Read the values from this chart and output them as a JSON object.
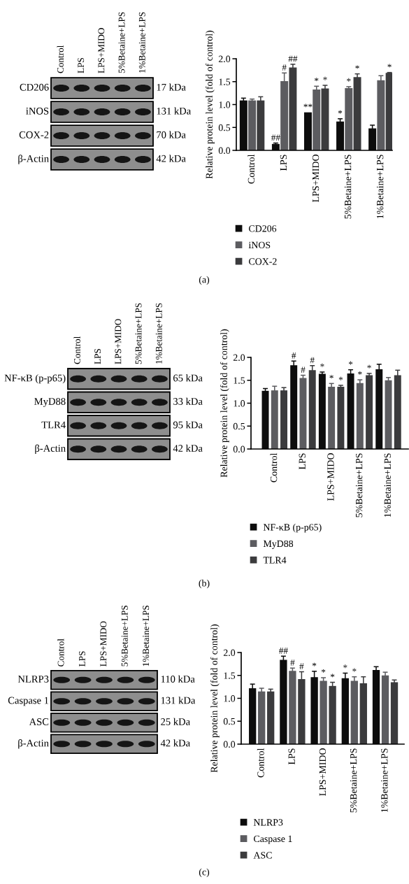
{
  "chart_data": [
    {
      "type": "other",
      "categories": [
        "Control",
        "LPS",
        "LPS+MIDO",
        "5%Betaine+LPS",
        "1%Betaine+LPS"
      ],
      "y_categories": [
        "CD206",
        "iNOS",
        "COX-2",
        "β-Actin"
      ],
      "y2_categories": [
        "17 kDa",
        "131 kDa",
        "70 kDa",
        "42 kDa"
      ],
      "annotations": [
        "(a)"
      ]
    },
    {
      "type": "bar",
      "ylabel": "Relative protein level (fold of control)",
      "categories": [
        "Control",
        "LPS",
        "LPS+MIDO",
        "5%Betaine+LPS",
        "1%Betaine+LPS"
      ],
      "series": [
        {
          "name": "CD206",
          "color": "#0d0d0d",
          "values": [
            1.09,
            0.14,
            0.83,
            0.63,
            0.48
          ],
          "errors": [
            0.05,
            0.02,
            null,
            0.06,
            0.07
          ],
          "value_labels": [
            null,
            "##",
            "**",
            "*",
            null
          ]
        },
        {
          "name": "iNOS",
          "color": "#5c5c60",
          "values": [
            1.09,
            1.51,
            1.33,
            1.36,
            1.53
          ],
          "errors": [
            0.03,
            0.18,
            0.07,
            0.03,
            0.1
          ],
          "value_labels": [
            null,
            "#",
            "*",
            "*",
            null
          ]
        },
        {
          "name": "COX-2",
          "color": "#3b3b3d",
          "values": [
            1.09,
            1.81,
            1.35,
            1.6,
            1.69
          ],
          "errors": [
            0.08,
            0.07,
            0.07,
            0.07,
            0.01
          ],
          "value_labels": [
            null,
            "##",
            "*",
            "*",
            "*"
          ]
        }
      ],
      "ylim": [
        0,
        2
      ],
      "yticks": [
        {
          "value": 0,
          "label": "0.0"
        },
        {
          "value": 0.5,
          "label": "0.5"
        },
        {
          "value": 1,
          "label": "1.0"
        },
        {
          "value": 1.5,
          "label": "1.5"
        },
        {
          "value": 2,
          "label": "2.0"
        }
      ],
      "legend": "bottom"
    },
    {
      "type": "other",
      "categories": [
        "Control",
        "LPS",
        "LPS+MIDO",
        "5%Betaine+LPS",
        "1%Betaine+LPS"
      ],
      "y_categories": [
        "NF-κB (p-p65)",
        "MyD88",
        "TLR4",
        "β-Actin"
      ],
      "y2_categories": [
        "65 kDa",
        "33 kDa",
        "95 kDa",
        "42 kDa"
      ],
      "annotations": [
        "(b)"
      ]
    },
    {
      "type": "bar",
      "ylabel": "Relative protein level (fold of control)",
      "categories": [
        "Control",
        "LPS",
        "LPS+MIDO",
        "5%Betaine+LPS",
        "1%Betaine+LPS"
      ],
      "series": [
        {
          "name": "NF-κB (p-p65)",
          "color": "#0d0d0d",
          "values": [
            1.27,
            1.83,
            1.64,
            1.65,
            1.74
          ],
          "errors": [
            0.05,
            0.09,
            0.04,
            0.08,
            0.11
          ],
          "value_labels": [
            null,
            "#",
            "*",
            "*",
            null
          ]
        },
        {
          "name": "MyD88",
          "color": "#5c5c60",
          "values": [
            1.28,
            1.55,
            1.36,
            1.44,
            1.5
          ],
          "errors": [
            0.09,
            0.06,
            0.07,
            0.07,
            0.06
          ],
          "value_labels": [
            null,
            "#",
            "*",
            "*",
            null
          ]
        },
        {
          "name": "TLR4",
          "color": "#3b3b3d",
          "values": [
            1.28,
            1.72,
            1.36,
            1.61,
            1.61
          ],
          "errors": [
            0.06,
            0.1,
            0.03,
            0.04,
            0.11
          ],
          "value_labels": [
            null,
            "#",
            "*",
            "*",
            null
          ]
        }
      ],
      "ylim": [
        0,
        2
      ],
      "yticks": [
        {
          "value": 0,
          "label": "0.0"
        },
        {
          "value": 0.5,
          "label": "0.5"
        },
        {
          "value": 1,
          "label": "1.0"
        },
        {
          "value": 1.5,
          "label": "1.5"
        },
        {
          "value": 2,
          "label": "2.0"
        }
      ],
      "legend": "bottom"
    },
    {
      "type": "other",
      "categories": [
        "Control",
        "LPS",
        "LPS+MIDO",
        "5%Betaine+LPS",
        "1%Betaine+LPS"
      ],
      "y_categories": [
        "NLRP3",
        "Caspase 1",
        "ASC",
        "β-Actin"
      ],
      "y2_categories": [
        "110 kDa",
        "131 kDa",
        "25 kDa",
        "42 kDa"
      ],
      "annotations": [
        "(c)"
      ]
    },
    {
      "type": "bar",
      "ylabel": "Relative protein level (fold of control)",
      "categories": [
        "Control",
        "LPS",
        "LPS+MIDO",
        "5%Betaine+LPS",
        "1%Betaine+LPS"
      ],
      "series": [
        {
          "name": "NLRP3",
          "color": "#0d0d0d",
          "values": [
            1.22,
            1.84,
            1.46,
            1.44,
            1.62
          ],
          "errors": [
            0.09,
            0.08,
            0.13,
            0.11,
            0.07
          ],
          "value_labels": [
            null,
            "##",
            "*",
            "*",
            null
          ]
        },
        {
          "name": "Caspase 1",
          "color": "#5c5c60",
          "values": [
            1.15,
            1.6,
            1.38,
            1.38,
            1.5
          ],
          "errors": [
            0.07,
            0.06,
            0.07,
            0.09,
            0.07
          ],
          "value_labels": [
            null,
            "#",
            "*",
            "*",
            null
          ]
        },
        {
          "name": "ASC",
          "color": "#3b3b3d",
          "values": [
            1.15,
            1.42,
            1.27,
            1.33,
            1.35
          ],
          "errors": [
            0.05,
            0.16,
            0.08,
            0.14,
            0.05
          ],
          "value_labels": [
            null,
            "#",
            "*",
            null,
            null
          ]
        }
      ],
      "ylim": [
        0,
        2
      ],
      "yticks": [
        {
          "value": 0,
          "label": "0.0"
        },
        {
          "value": 0.5,
          "label": "0.5"
        },
        {
          "value": 1,
          "label": "1.0"
        },
        {
          "value": 1.5,
          "label": "1.5"
        },
        {
          "value": 2,
          "label": "2.0"
        }
      ],
      "legend": "bottom"
    }
  ]
}
